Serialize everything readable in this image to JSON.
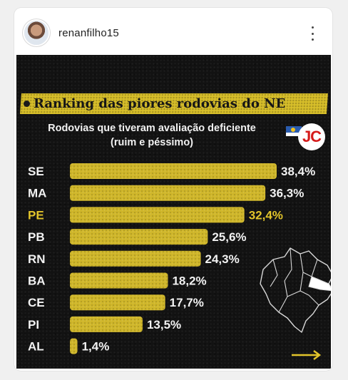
{
  "post": {
    "username": "renanfilho15"
  },
  "graphic": {
    "title": "Ranking das piores rodovias do NE",
    "subtitle": "Rodovias que tiveram avaliação deficiente (ruim e péssimo)",
    "logo_text": "JC",
    "colors": {
      "bar": "#cfb62a",
      "highlight_label": "#e3c52b",
      "background": "#121212",
      "logo_red": "#d51a1a"
    }
  },
  "chart_data": {
    "type": "bar",
    "orientation": "horizontal",
    "categories": [
      "SE",
      "MA",
      "PE",
      "PB",
      "RN",
      "BA",
      "CE",
      "PI",
      "AL"
    ],
    "values": [
      38.4,
      36.3,
      32.4,
      25.6,
      24.3,
      18.2,
      17.7,
      13.5,
      1.4
    ],
    "value_labels": [
      "38,4%",
      "36,3%",
      "32,4%",
      "25,6%",
      "24,3%",
      "18,2%",
      "17,7%",
      "13,5%",
      "1,4%"
    ],
    "highlighted_category": "PE",
    "xlim": [
      0,
      38.4
    ],
    "grid": false,
    "legend": "none"
  }
}
